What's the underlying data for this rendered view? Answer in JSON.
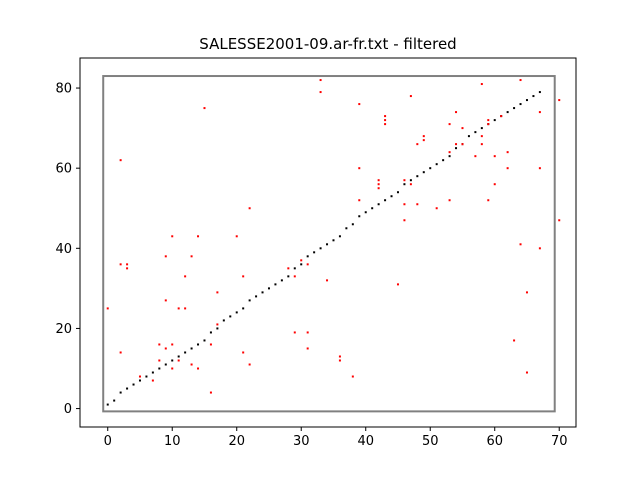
{
  "chart_data": {
    "type": "scatter",
    "title": "SALESSE2001-09.ar-fr.txt - filtered",
    "xlabel": "",
    "ylabel": "",
    "xlim": [
      -4.3,
      72.6
    ],
    "ylim": [
      -4.6,
      87.5
    ],
    "x_ticks": [
      "0",
      "10",
      "20",
      "30",
      "40",
      "50",
      "60",
      "70"
    ],
    "x_tick_values": [
      0,
      10,
      20,
      30,
      40,
      50,
      60,
      70
    ],
    "y_ticks": [
      "0",
      "20",
      "40",
      "60",
      "80"
    ],
    "y_tick_values": [
      0,
      20,
      40,
      60,
      80
    ],
    "grid": false,
    "alignment_box": {
      "x": [
        -0.7,
        69.3
      ],
      "y": [
        -0.7,
        83.0
      ]
    },
    "series": [
      {
        "color": "#000000",
        "points": [
          [
            0,
            1
          ],
          [
            1,
            2
          ],
          [
            2,
            4
          ],
          [
            3,
            5
          ],
          [
            4,
            6
          ],
          [
            5,
            7
          ],
          [
            6,
            8
          ],
          [
            7,
            9
          ],
          [
            8,
            10
          ],
          [
            9,
            11
          ],
          [
            10,
            12
          ],
          [
            11,
            13
          ],
          [
            12,
            14
          ],
          [
            13,
            15
          ],
          [
            14,
            16
          ],
          [
            15,
            17
          ],
          [
            16,
            19
          ],
          [
            17,
            20
          ],
          [
            18,
            22
          ],
          [
            19,
            23
          ],
          [
            20,
            24
          ],
          [
            21,
            25
          ],
          [
            22,
            27
          ],
          [
            23,
            28
          ],
          [
            24,
            29
          ],
          [
            25,
            30
          ],
          [
            26,
            31
          ],
          [
            27,
            32
          ],
          [
            28,
            33
          ],
          [
            29,
            35
          ],
          [
            30,
            36
          ],
          [
            31,
            38
          ],
          [
            32,
            39
          ],
          [
            33,
            40
          ],
          [
            34,
            41
          ],
          [
            35,
            42
          ],
          [
            36,
            43
          ],
          [
            37,
            45
          ],
          [
            38,
            46
          ],
          [
            39,
            48
          ],
          [
            40,
            49
          ],
          [
            41,
            50
          ],
          [
            42,
            51
          ],
          [
            43,
            52
          ],
          [
            44,
            53
          ],
          [
            45,
            54
          ],
          [
            46,
            56
          ],
          [
            47,
            57
          ],
          [
            48,
            58
          ],
          [
            49,
            59
          ],
          [
            50,
            60
          ],
          [
            51,
            61
          ],
          [
            52,
            62
          ],
          [
            53,
            63
          ],
          [
            54,
            65
          ],
          [
            55,
            66
          ],
          [
            56,
            68
          ],
          [
            57,
            69
          ],
          [
            58,
            70
          ],
          [
            59,
            71
          ],
          [
            60,
            72
          ],
          [
            61,
            73
          ],
          [
            62,
            74
          ],
          [
            63,
            75
          ],
          [
            64,
            76
          ],
          [
            65,
            77
          ],
          [
            66,
            78
          ],
          [
            67,
            79
          ]
        ]
      },
      {
        "color": "#ff0000",
        "points": [
          [
            0,
            25
          ],
          [
            2,
            62
          ],
          [
            2,
            36
          ],
          [
            2,
            14
          ],
          [
            3,
            35
          ],
          [
            3,
            36
          ],
          [
            5,
            8
          ],
          [
            7,
            7
          ],
          [
            8,
            12
          ],
          [
            8,
            16
          ],
          [
            9,
            38
          ],
          [
            9,
            27
          ],
          [
            9,
            15
          ],
          [
            10,
            43
          ],
          [
            10,
            16
          ],
          [
            10,
            10
          ],
          [
            11,
            25
          ],
          [
            11,
            12
          ],
          [
            12,
            33
          ],
          [
            12,
            25
          ],
          [
            13,
            38
          ],
          [
            13,
            11
          ],
          [
            14,
            43
          ],
          [
            14,
            10
          ],
          [
            15,
            75
          ],
          [
            16,
            4
          ],
          [
            16,
            16
          ],
          [
            17,
            29
          ],
          [
            17,
            21
          ],
          [
            20,
            43
          ],
          [
            21,
            33
          ],
          [
            21,
            14
          ],
          [
            22,
            50
          ],
          [
            22,
            11
          ],
          [
            28,
            35
          ],
          [
            29,
            33
          ],
          [
            29,
            19
          ],
          [
            30,
            37
          ],
          [
            31,
            36
          ],
          [
            31,
            19
          ],
          [
            31,
            15
          ],
          [
            33,
            82
          ],
          [
            33,
            79
          ],
          [
            34,
            32
          ],
          [
            36,
            13
          ],
          [
            36,
            12
          ],
          [
            38,
            8
          ],
          [
            39,
            76
          ],
          [
            39,
            60
          ],
          [
            39,
            52
          ],
          [
            42,
            57
          ],
          [
            42,
            56
          ],
          [
            42,
            55
          ],
          [
            43,
            73
          ],
          [
            43,
            72
          ],
          [
            43,
            71
          ],
          [
            45,
            31
          ],
          [
            46,
            57
          ],
          [
            46,
            51
          ],
          [
            46,
            47
          ],
          [
            47,
            78
          ],
          [
            47,
            56
          ],
          [
            48,
            66
          ],
          [
            48,
            51
          ],
          [
            49,
            68
          ],
          [
            49,
            67
          ],
          [
            51,
            50
          ],
          [
            53,
            71
          ],
          [
            53,
            64
          ],
          [
            53,
            52
          ],
          [
            54,
            74
          ],
          [
            54,
            66
          ],
          [
            55,
            70
          ],
          [
            55,
            66
          ],
          [
            57,
            63
          ],
          [
            58,
            81
          ],
          [
            58,
            68
          ],
          [
            58,
            66
          ],
          [
            59,
            72
          ],
          [
            59,
            71
          ],
          [
            59,
            52
          ],
          [
            60,
            63
          ],
          [
            60,
            56
          ],
          [
            61,
            73
          ],
          [
            62,
            64
          ],
          [
            62,
            60
          ],
          [
            63,
            17
          ],
          [
            64,
            82
          ],
          [
            64,
            41
          ],
          [
            65,
            29
          ],
          [
            65,
            9
          ],
          [
            67,
            74
          ],
          [
            67,
            60
          ],
          [
            67,
            40
          ],
          [
            70,
            77
          ],
          [
            70,
            47
          ]
        ]
      }
    ]
  }
}
